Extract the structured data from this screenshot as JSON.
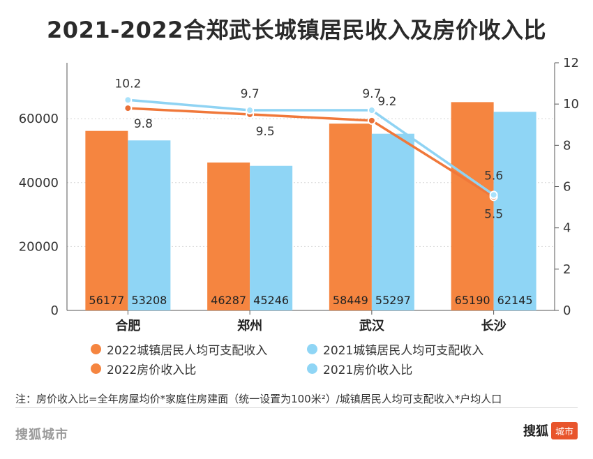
{
  "title": "2021-2022合郑武长城镇居民收入及房价收入比",
  "note": "注：房价收入比=全年房屋均价*家庭住房建面（统一设置为100米²）/城镇居民人均可支配收入*户均人口",
  "footer": {
    "left": "搜狐城市",
    "brand": "搜狐",
    "badge": "城市"
  },
  "colors": {
    "orange": "#f58540",
    "blue": "#8fd5f5",
    "orange_line": "#f0783a",
    "blue_line": "#8fd3f3",
    "axis": "#555555"
  },
  "chart_data": {
    "type": "bar",
    "categories": [
      "合肥",
      "郑州",
      "武汉",
      "长沙"
    ],
    "series": [
      {
        "name": "2022城镇居民人均可支配收入",
        "type": "bar",
        "axis": "left",
        "values": [
          56177,
          46287,
          58449,
          65190
        ]
      },
      {
        "name": "2021城镇居民人均可支配收入",
        "type": "bar",
        "axis": "left",
        "values": [
          53208,
          45246,
          55297,
          62145
        ]
      },
      {
        "name": "2022房价收入比",
        "type": "line",
        "axis": "right",
        "values": [
          9.8,
          9.5,
          9.2,
          5.5
        ]
      },
      {
        "name": "2021房价收入比",
        "type": "line",
        "axis": "right",
        "values": [
          10.2,
          9.7,
          9.7,
          5.6
        ]
      }
    ],
    "y_left": {
      "ticks": [
        0,
        20000,
        40000,
        60000
      ],
      "range": [
        0,
        77500
      ]
    },
    "y_right": {
      "ticks": [
        0,
        2,
        4,
        6,
        8,
        10,
        12
      ],
      "range": [
        0,
        12
      ]
    },
    "gridlines": true,
    "legend_position": "bottom"
  }
}
